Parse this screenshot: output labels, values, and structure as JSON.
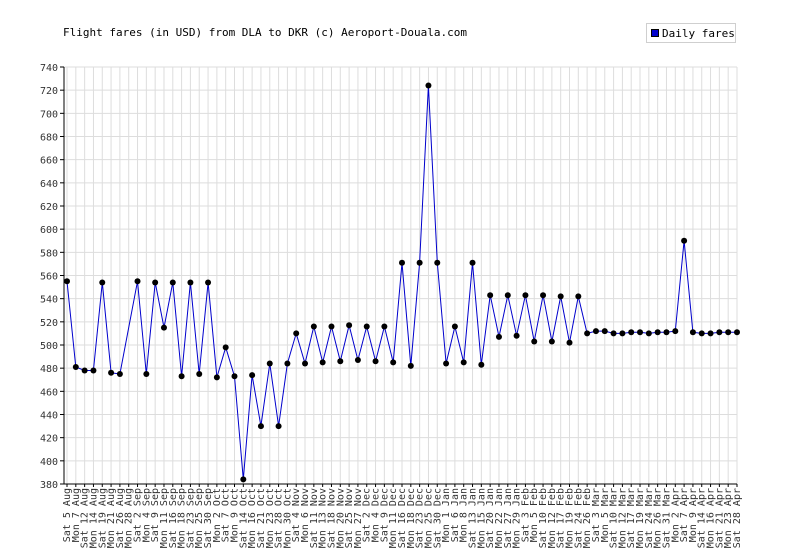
{
  "chart_data": {
    "type": "line",
    "title": "Flight fares (in USD) from DLA to DKR (c) Aeroport-Douala.com",
    "legend": [
      "Daily fares"
    ],
    "legend_position": "top-right",
    "grid": true,
    "ylim": [
      380,
      740
    ],
    "yticks": [
      380,
      400,
      420,
      440,
      460,
      480,
      500,
      520,
      540,
      560,
      580,
      600,
      620,
      640,
      660,
      680,
      700,
      720,
      740
    ],
    "categories": [
      "Sat 5 Aug",
      "Mon 7 Aug",
      "Sat 12 Aug",
      "Mon 14 Aug",
      "Sat 19 Aug",
      "Mon 21 Aug",
      "Sat 26 Aug",
      "Mon 28 Aug",
      "Sat 2 Sep",
      "Mon 4 Sep",
      "Sat 9 Sep",
      "Mon 11 Sep",
      "Sat 16 Sep",
      "Mon 18 Sep",
      "Sat 23 Sep",
      "Mon 25 Sep",
      "Sat 30 Sep",
      "Mon 2 Oct",
      "Sat 7 Oct",
      "Mon 9 Oct",
      "Sat 14 Oct",
      "Mon 16 Oct",
      "Sat 21 Oct",
      "Mon 23 Oct",
      "Sat 28 Oct",
      "Mon 30 Oct",
      "Sat 4 Nov",
      "Mon 6 Nov",
      "Sat 11 Nov",
      "Mon 13 Nov",
      "Sat 18 Nov",
      "Mon 20 Nov",
      "Sat 25 Nov",
      "Mon 27 Nov",
      "Sat 2 Dec",
      "Mon 4 Dec",
      "Sat 9 Dec",
      "Mon 11 Dec",
      "Sat 16 Dec",
      "Mon 18 Dec",
      "Sat 23 Dec",
      "Mon 25 Dec",
      "Sat 30 Dec",
      "Mon 1 Jan",
      "Sat 6 Jan",
      "Mon 8 Jan",
      "Sat 13 Jan",
      "Mon 15 Jan",
      "Sat 20 Jan",
      "Mon 22 Jan",
      "Sat 27 Jan",
      "Mon 29 Jan",
      "Sat 3 Feb",
      "Mon 5 Feb",
      "Sat 10 Feb",
      "Mon 12 Feb",
      "Sat 17 Feb",
      "Mon 19 Feb",
      "Sat 24 Feb",
      "Mon 26 Feb",
      "Sat 3 Mar",
      "Mon 5 Mar",
      "Sat 10 Mar",
      "Mon 12 Mar",
      "Sat 17 Mar",
      "Mon 19 Mar",
      "Sat 24 Mar",
      "Mon 26 Mar",
      "Sat 31 Mar",
      "Mon 2 Apr",
      "Sat 7 Apr",
      "Mon 9 Apr",
      "Sat 14 Apr",
      "Mon 16 Apr",
      "Sat 21 Apr",
      "Mon 23 Apr",
      "Sat 28 Apr"
    ],
    "series": [
      {
        "name": "Daily fares",
        "color": "#0000cc",
        "x": [
          "Sat 5 Aug",
          "Mon 7 Aug",
          "Sat 12 Aug",
          "Mon 14 Aug",
          "Sat 19 Aug",
          "Mon 21 Aug",
          "Sat 26 Aug",
          "Sat 2 Sep",
          "Mon 4 Sep",
          "Sat 9 Sep",
          "Mon 11 Sep",
          "Sat 16 Sep",
          "Mon 18 Sep",
          "Sat 23 Sep",
          "Mon 25 Sep",
          "Sat 30 Sep",
          "Mon 2 Oct",
          "Sat 7 Oct",
          "Mon 9 Oct",
          "Sat 14 Oct",
          "Mon 16 Oct",
          "Sat 21 Oct",
          "Mon 23 Oct",
          "Sat 28 Oct",
          "Mon 30 Oct",
          "Sat 4 Nov",
          "Mon 6 Nov",
          "Sat 11 Nov",
          "Mon 13 Nov",
          "Sat 18 Nov",
          "Mon 20 Nov",
          "Sat 25 Nov",
          "Mon 27 Nov",
          "Sat 2 Dec",
          "Mon 4 Dec",
          "Sat 9 Dec",
          "Mon 11 Dec",
          "Sat 16 Dec",
          "Mon 18 Dec",
          "Sat 23 Dec",
          "Mon 25 Dec",
          "Sat 30 Dec",
          "Mon 1 Jan",
          "Sat 6 Jan",
          "Mon 8 Jan",
          "Sat 13 Jan",
          "Mon 15 Jan",
          "Sat 20 Jan",
          "Mon 22 Jan",
          "Sat 27 Jan",
          "Mon 29 Jan",
          "Sat 3 Feb",
          "Mon 5 Feb",
          "Sat 10 Feb",
          "Mon 12 Feb",
          "Sat 17 Feb",
          "Mon 19 Feb",
          "Sat 24 Feb",
          "Mon 26 Feb",
          "Sat 3 Mar",
          "Mon 5 Mar",
          "Sat 10 Mar",
          "Mon 12 Mar",
          "Sat 17 Mar",
          "Mon 19 Mar",
          "Sat 24 Mar",
          "Mon 26 Mar",
          "Sat 31 Mar",
          "Mon 2 Apr",
          "Sat 7 Apr",
          "Mon 9 Apr",
          "Sat 14 Apr",
          "Mon 16 Apr",
          "Sat 21 Apr",
          "Mon 23 Apr",
          "Sat 28 Apr"
        ],
        "values": [
          555,
          481,
          478,
          478,
          554,
          476,
          475,
          555,
          475,
          554,
          515,
          554,
          473,
          554,
          475,
          554,
          472,
          498,
          473,
          384,
          474,
          430,
          484,
          430,
          484,
          510,
          484,
          516,
          485,
          516,
          486,
          517,
          487,
          516,
          486,
          516,
          485,
          571,
          482,
          571,
          724,
          571,
          484,
          516,
          485,
          571,
          483,
          543,
          507,
          543,
          508,
          543,
          503,
          543,
          503,
          542,
          502,
          542,
          510,
          512,
          512,
          510,
          510,
          511,
          511,
          510,
          511,
          511,
          512,
          590,
          511,
          510,
          510,
          511,
          511,
          511
        ]
      }
    ]
  }
}
